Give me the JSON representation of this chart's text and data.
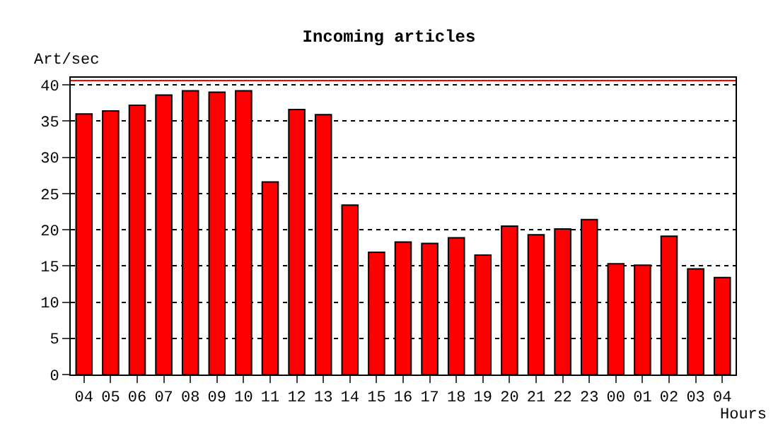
{
  "chart_data": {
    "type": "bar",
    "title": "Incoming articles",
    "ylabel": "Art/sec",
    "xlabel": "Hours",
    "categories": [
      "04",
      "05",
      "06",
      "07",
      "08",
      "09",
      "10",
      "11",
      "12",
      "13",
      "14",
      "15",
      "16",
      "17",
      "18",
      "19",
      "20",
      "21",
      "22",
      "23",
      "00",
      "01",
      "02",
      "03",
      "04"
    ],
    "values": [
      36.0,
      36.4,
      37.2,
      38.6,
      39.2,
      39.0,
      39.2,
      26.6,
      36.6,
      35.9,
      23.4,
      16.9,
      18.3,
      18.1,
      18.9,
      16.5,
      20.5,
      19.3,
      20.1,
      21.4,
      15.3,
      15.1,
      19.1,
      14.6,
      13.4
    ],
    "color": "#ff0000",
    "ylim": [
      0,
      41
    ],
    "yticks": [
      0,
      5,
      10,
      15,
      20,
      25,
      30,
      35,
      40
    ],
    "grid": "y",
    "ref_lines": [
      {
        "axis": "y",
        "value": 40.6,
        "color": "#ff0000"
      }
    ]
  }
}
